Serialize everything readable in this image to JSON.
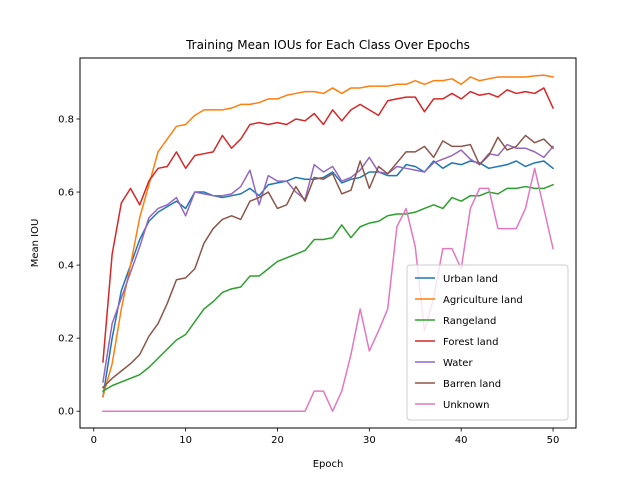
{
  "chart_data": {
    "type": "line",
    "title": "Training Mean IOUs for Each Class Over Epochs",
    "xlabel": "Epoch",
    "ylabel": "Mean IOU",
    "xlim": [
      -1.5,
      52.5
    ],
    "ylim": [
      -0.046,
      0.967
    ],
    "xticks": [
      0,
      10,
      20,
      30,
      40,
      50
    ],
    "yticks": [
      0.0,
      0.2,
      0.4,
      0.6,
      0.8
    ],
    "ytick_labels": [
      "0.0",
      "0.2",
      "0.4",
      "0.6",
      "0.8"
    ],
    "grid": false,
    "legend_position": "lower-right",
    "x": [
      1,
      2,
      3,
      4,
      5,
      6,
      7,
      8,
      9,
      10,
      11,
      12,
      13,
      14,
      15,
      16,
      17,
      18,
      19,
      20,
      21,
      22,
      23,
      24,
      25,
      26,
      27,
      28,
      29,
      30,
      31,
      32,
      33,
      34,
      35,
      36,
      37,
      38,
      39,
      40,
      41,
      42,
      43,
      44,
      45,
      46,
      47,
      48,
      49,
      50
    ],
    "series": [
      {
        "name": "Urban land",
        "color": "#1f77b4",
        "values": [
          0.04,
          0.2,
          0.33,
          0.4,
          0.47,
          0.52,
          0.545,
          0.56,
          0.575,
          0.555,
          0.6,
          0.6,
          0.59,
          0.585,
          0.59,
          0.595,
          0.61,
          0.59,
          0.62,
          0.625,
          0.63,
          0.64,
          0.635,
          0.635,
          0.64,
          0.655,
          0.625,
          0.635,
          0.64,
          0.655,
          0.655,
          0.645,
          0.645,
          0.675,
          0.67,
          0.655,
          0.685,
          0.665,
          0.68,
          0.675,
          0.685,
          0.68,
          0.665,
          0.67,
          0.675,
          0.685,
          0.67,
          0.68,
          0.685,
          0.665
        ]
      },
      {
        "name": "Agriculture land",
        "color": "#ff7f0e",
        "values": [
          0.04,
          0.13,
          0.28,
          0.4,
          0.53,
          0.62,
          0.71,
          0.745,
          0.78,
          0.785,
          0.81,
          0.825,
          0.825,
          0.825,
          0.83,
          0.84,
          0.84,
          0.845,
          0.855,
          0.855,
          0.865,
          0.87,
          0.875,
          0.875,
          0.87,
          0.885,
          0.87,
          0.885,
          0.885,
          0.89,
          0.89,
          0.89,
          0.895,
          0.895,
          0.905,
          0.895,
          0.905,
          0.905,
          0.91,
          0.895,
          0.915,
          0.905,
          0.91,
          0.915,
          0.915,
          0.915,
          0.915,
          0.918,
          0.92,
          0.915
        ]
      },
      {
        "name": "Rangeland",
        "color": "#2ca02c",
        "values": [
          0.055,
          0.07,
          0.08,
          0.09,
          0.1,
          0.12,
          0.145,
          0.17,
          0.195,
          0.21,
          0.245,
          0.28,
          0.3,
          0.325,
          0.335,
          0.34,
          0.37,
          0.37,
          0.39,
          0.41,
          0.42,
          0.43,
          0.44,
          0.47,
          0.47,
          0.475,
          0.51,
          0.475,
          0.505,
          0.515,
          0.52,
          0.535,
          0.54,
          0.54,
          0.545,
          0.555,
          0.565,
          0.555,
          0.585,
          0.575,
          0.59,
          0.59,
          0.6,
          0.595,
          0.61,
          0.61,
          0.615,
          0.61,
          0.61,
          0.62
        ]
      },
      {
        "name": "Forest land",
        "color": "#d62728",
        "values": [
          0.135,
          0.43,
          0.57,
          0.61,
          0.565,
          0.63,
          0.665,
          0.67,
          0.71,
          0.665,
          0.7,
          0.705,
          0.71,
          0.755,
          0.72,
          0.745,
          0.785,
          0.79,
          0.785,
          0.79,
          0.785,
          0.8,
          0.795,
          0.815,
          0.785,
          0.825,
          0.795,
          0.825,
          0.84,
          0.825,
          0.81,
          0.85,
          0.855,
          0.86,
          0.86,
          0.82,
          0.855,
          0.855,
          0.87,
          0.855,
          0.875,
          0.865,
          0.87,
          0.86,
          0.88,
          0.87,
          0.875,
          0.87,
          0.885,
          0.83
        ]
      },
      {
        "name": "Water",
        "color": "#9467bd",
        "values": [
          0.08,
          0.24,
          0.31,
          0.38,
          0.45,
          0.53,
          0.555,
          0.565,
          0.585,
          0.535,
          0.6,
          0.595,
          0.59,
          0.59,
          0.595,
          0.615,
          0.66,
          0.565,
          0.645,
          0.63,
          0.63,
          0.6,
          0.58,
          0.675,
          0.655,
          0.67,
          0.63,
          0.64,
          0.66,
          0.695,
          0.655,
          0.65,
          0.67,
          0.665,
          0.66,
          0.655,
          0.68,
          0.69,
          0.7,
          0.715,
          0.69,
          0.675,
          0.705,
          0.7,
          0.73,
          0.72,
          0.72,
          0.71,
          0.695,
          0.725
        ]
      },
      {
        "name": "Barren land",
        "color": "#8c564b",
        "values": [
          0.065,
          0.09,
          0.11,
          0.13,
          0.155,
          0.205,
          0.24,
          0.295,
          0.36,
          0.365,
          0.39,
          0.46,
          0.5,
          0.525,
          0.535,
          0.525,
          0.575,
          0.585,
          0.6,
          0.555,
          0.565,
          0.615,
          0.575,
          0.64,
          0.635,
          0.65,
          0.595,
          0.605,
          0.685,
          0.61,
          0.67,
          0.65,
          0.68,
          0.71,
          0.71,
          0.725,
          0.695,
          0.74,
          0.725,
          0.725,
          0.73,
          0.675,
          0.7,
          0.75,
          0.715,
          0.725,
          0.755,
          0.735,
          0.745,
          0.72
        ]
      },
      {
        "name": "Unknown",
        "color": "#e377c2",
        "values": [
          0.0,
          0.0,
          0.0,
          0.0,
          0.0,
          0.0,
          0.0,
          0.0,
          0.0,
          0.0,
          0.0,
          0.0,
          0.0,
          0.0,
          0.0,
          0.0,
          0.0,
          0.0,
          0.0,
          0.0,
          0.0,
          0.0,
          0.0,
          0.055,
          0.055,
          0.0,
          0.055,
          0.155,
          0.28,
          0.165,
          0.22,
          0.28,
          0.505,
          0.555,
          0.45,
          0.22,
          0.31,
          0.445,
          0.445,
          0.39,
          0.555,
          0.61,
          0.61,
          0.5,
          0.5,
          0.5,
          0.555,
          0.665,
          0.555,
          0.445
        ]
      }
    ]
  }
}
